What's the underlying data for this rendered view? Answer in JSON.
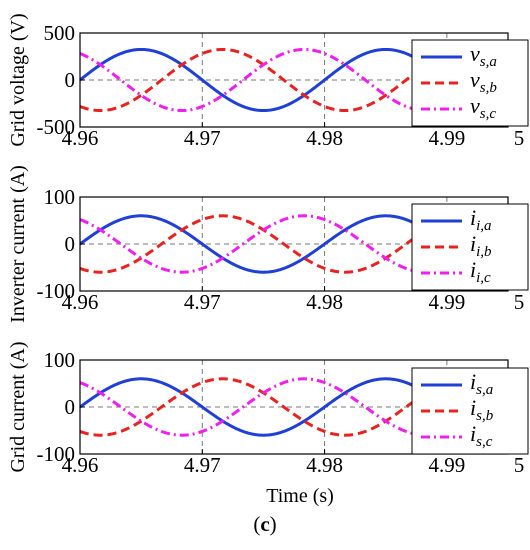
{
  "caption": {
    "open": "(",
    "letter": "c",
    "close": ")"
  },
  "xlabel": "Time (s)",
  "chart_data": [
    {
      "type": "line",
      "ylabel": "Grid voltage (V)",
      "xlim": [
        4.96,
        4.995
      ],
      "ylim": [
        -500,
        500
      ],
      "x_ticks": [
        "4.96",
        "4.97",
        "4.98",
        "4.99",
        "5"
      ],
      "y_ticks": [
        "500",
        "0",
        "-500"
      ],
      "grid": "dashed",
      "legend_position": "right",
      "amplitude": 325,
      "period": 0.02,
      "series": [
        {
          "name_main": "v",
          "name_sub": "s,a",
          "color": "#1f3fd6",
          "style": "solid",
          "phase_deg": 0
        },
        {
          "name_main": "v",
          "name_sub": "s,b",
          "color": "#e8231f",
          "style": "dash",
          "phase_deg": -120
        },
        {
          "name_main": "v",
          "name_sub": "s,c",
          "color": "#f01ef0",
          "style": "dashdot",
          "phase_deg": 120
        }
      ]
    },
    {
      "type": "line",
      "ylabel": "Inverter current (A)",
      "xlim": [
        4.96,
        4.995
      ],
      "ylim": [
        -100,
        100
      ],
      "x_ticks": [
        "4.96",
        "4.97",
        "4.98",
        "4.99",
        "5"
      ],
      "y_ticks": [
        "100",
        "0",
        "-100"
      ],
      "grid": "dashed",
      "legend_position": "right",
      "amplitude": 60,
      "period": 0.02,
      "series": [
        {
          "name_main": "i",
          "name_sub": "i,a",
          "color": "#1f3fd6",
          "style": "solid",
          "phase_deg": 0
        },
        {
          "name_main": "i",
          "name_sub": "i,b",
          "color": "#e8231f",
          "style": "dash",
          "phase_deg": -120
        },
        {
          "name_main": "i",
          "name_sub": "i,c",
          "color": "#f01ef0",
          "style": "dashdot",
          "phase_deg": 120
        }
      ]
    },
    {
      "type": "line",
      "ylabel": "Grid current (A)",
      "xlim": [
        4.96,
        4.995
      ],
      "ylim": [
        -100,
        100
      ],
      "x_ticks": [
        "4.96",
        "4.97",
        "4.98",
        "4.99",
        "5"
      ],
      "y_ticks": [
        "100",
        "0",
        "-100"
      ],
      "grid": "dashed",
      "legend_position": "right",
      "amplitude": 60,
      "period": 0.02,
      "series": [
        {
          "name_main": "i",
          "name_sub": "s,a",
          "color": "#1f3fd6",
          "style": "solid",
          "phase_deg": 0
        },
        {
          "name_main": "i",
          "name_sub": "s,b",
          "color": "#e8231f",
          "style": "dash",
          "phase_deg": -120
        },
        {
          "name_main": "i",
          "name_sub": "s,c",
          "color": "#f01ef0",
          "style": "dashdot",
          "phase_deg": 120
        }
      ]
    }
  ]
}
